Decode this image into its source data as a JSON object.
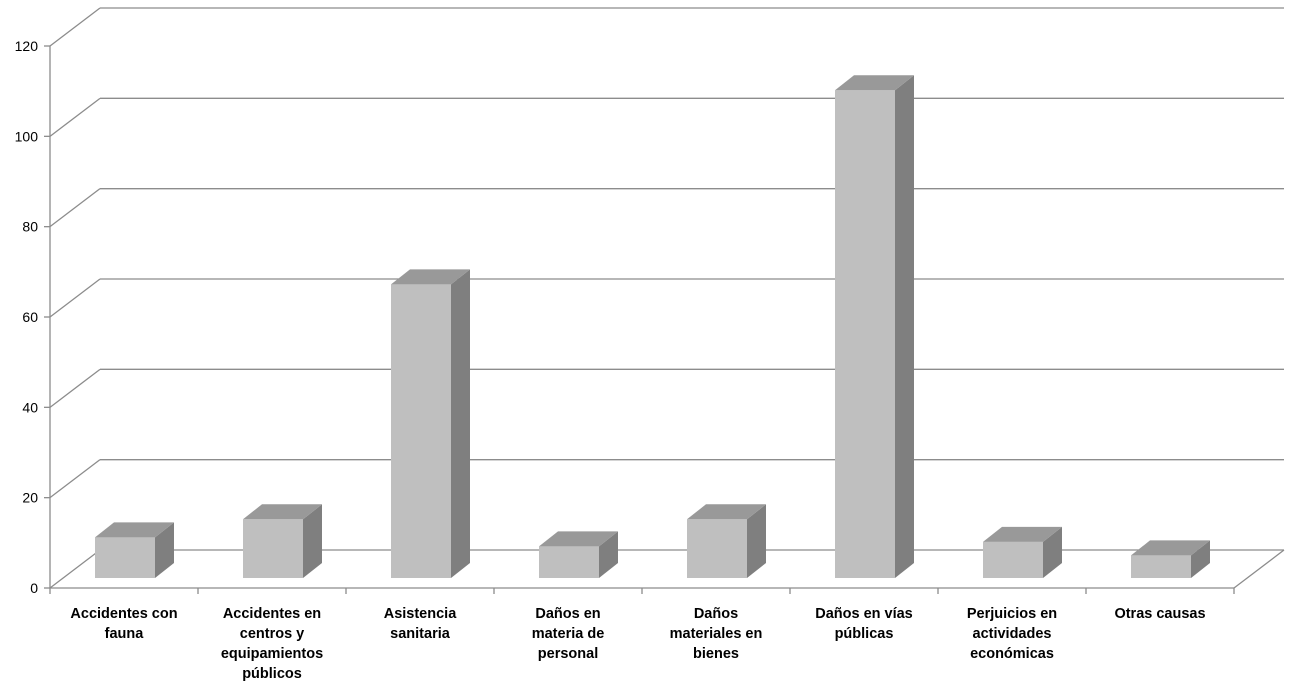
{
  "chart_data": {
    "type": "bar",
    "style": "3d-column",
    "title": "",
    "xlabel": "",
    "ylabel": "",
    "ylim": [
      0,
      120
    ],
    "yticks": [
      0,
      20,
      40,
      60,
      80,
      100,
      120
    ],
    "grid": true,
    "legend": "none",
    "categories": [
      [
        "Accidentes con",
        "fauna"
      ],
      [
        "Accidentes en",
        "centros y",
        "equipamientos",
        "públicos"
      ],
      [
        "Asistencia",
        "sanitaria"
      ],
      [
        "Daños en",
        "materia de",
        "personal"
      ],
      [
        "Daños",
        "materiales en",
        "bienes"
      ],
      [
        "Daños en vías",
        "públicas"
      ],
      [
        "Perjuicios en",
        "actividades",
        "económicas"
      ],
      [
        "Otras causas"
      ]
    ],
    "values": [
      9,
      13,
      65,
      7,
      13,
      108,
      8,
      5
    ],
    "colors": {
      "front": "#bfbfbf",
      "side": "#7f7f7f",
      "top": "#999999",
      "grid": "#8c8c8c",
      "text": "#000000"
    }
  }
}
